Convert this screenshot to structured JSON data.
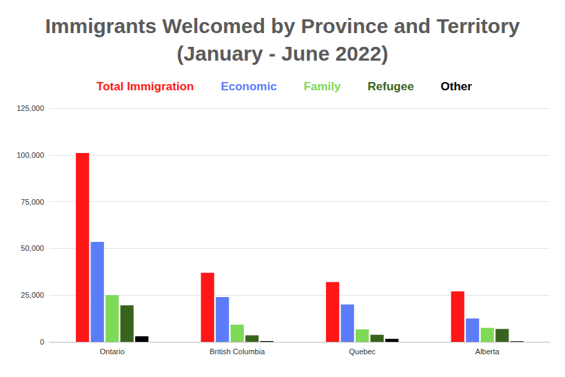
{
  "chart_data": {
    "type": "bar",
    "title": "Immigrants Welcomed by Province and Territory\n(January - June 2022)",
    "categories": [
      "Ontario",
      "British Columbia",
      "Quebec",
      "Alberta"
    ],
    "series": [
      {
        "name": "Total Immigration",
        "color": "#ff1616",
        "values": [
          101000,
          37000,
          32000,
          27000
        ]
      },
      {
        "name": "Economic",
        "color": "#5c7cfa",
        "values": [
          53500,
          24000,
          20000,
          12500
        ]
      },
      {
        "name": "Family",
        "color": "#7ed957",
        "values": [
          25000,
          9200,
          6700,
          7500
        ]
      },
      {
        "name": "Refugee",
        "color": "#38631f",
        "values": [
          19500,
          3500,
          3800,
          6900
        ]
      },
      {
        "name": "Other",
        "color": "#000000",
        "values": [
          3000,
          400,
          1600,
          300
        ]
      }
    ],
    "ylim": [
      0,
      125000
    ],
    "yticks": [
      {
        "value": 0,
        "label": "0"
      },
      {
        "value": 25000,
        "label": "25,000"
      },
      {
        "value": 50000,
        "label": "50,000"
      },
      {
        "value": 75000,
        "label": "75,000"
      },
      {
        "value": 100000,
        "label": "100,000"
      },
      {
        "value": 125000,
        "label": "125,000"
      }
    ],
    "grid": true,
    "legend": "top"
  }
}
